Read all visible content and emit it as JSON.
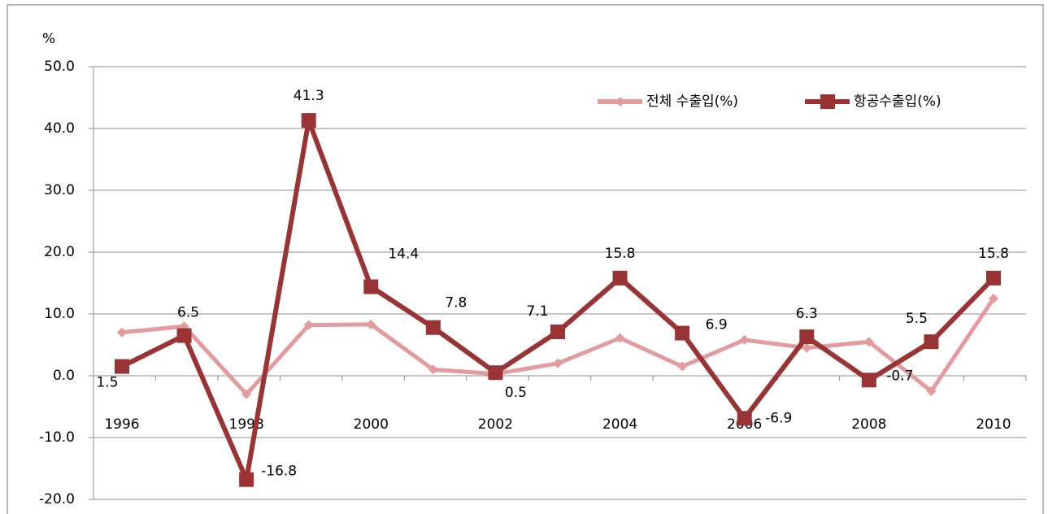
{
  "chart_data": {
    "type": "line",
    "y_axis_label": "%",
    "categories": [
      "1996",
      null,
      "1998",
      null,
      "2000",
      null,
      "2002",
      null,
      "2004",
      null,
      "2006",
      null,
      "2008",
      null,
      "2010"
    ],
    "series": [
      {
        "name": "전체 수출입(%)",
        "color": "#e39b9d",
        "marker": "diamond",
        "values": [
          7.0,
          8.0,
          -3.0,
          8.2,
          8.3,
          1.0,
          0.3,
          2.0,
          6.1,
          1.5,
          5.8,
          4.5,
          5.5,
          -2.5,
          12.5
        ]
      },
      {
        "name": "항공수출입(%)",
        "color": "#9a3434",
        "marker": "square",
        "data_labels": true,
        "values": [
          1.5,
          6.5,
          -16.8,
          41.3,
          14.4,
          7.8,
          0.5,
          7.1,
          15.8,
          6.9,
          -6.9,
          6.3,
          -0.7,
          5.5,
          15.8
        ]
      }
    ],
    "ylim": [
      -20,
      50
    ],
    "yticks": [
      {
        "value": -20,
        "label": "-20.0"
      },
      {
        "value": -10,
        "label": "-10.0"
      },
      {
        "value": 0,
        "label": "0.0"
      },
      {
        "value": 10,
        "label": "10.0"
      },
      {
        "value": 20,
        "label": "20.0"
      },
      {
        "value": 30,
        "label": "30.0"
      },
      {
        "value": 40,
        "label": "40.0"
      },
      {
        "value": 50,
        "label": "50.0"
      }
    ],
    "grid": true,
    "legend": "top-right"
  }
}
